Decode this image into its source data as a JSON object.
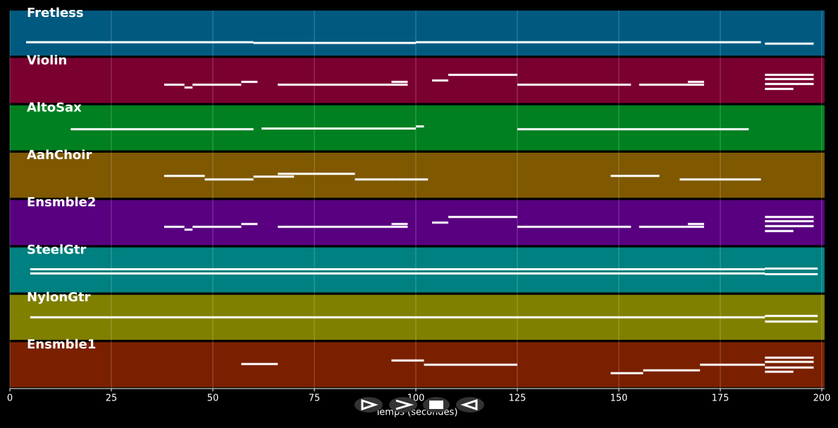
{
  "chart_data": {
    "type": "pianoroll",
    "xlabel": "Temps (secondes)",
    "xlim": [
      0,
      200
    ],
    "xticks": [
      0,
      25,
      50,
      75,
      100,
      125,
      150,
      175,
      200
    ],
    "grid": true,
    "series": [
      {
        "name": "Fretless",
        "color": "#005a80",
        "notes": [
          [
            4,
            60,
            2.75
          ],
          [
            60,
            100,
            2.5
          ],
          [
            100,
            185,
            2.75
          ],
          [
            186,
            198,
            2.25
          ]
        ]
      },
      {
        "name": "Violin",
        "color": "#7a0030",
        "notes": [
          [
            38,
            43,
            4.5
          ],
          [
            43,
            45,
            3.5
          ],
          [
            45,
            57,
            4.5
          ],
          [
            57,
            61,
            5.5
          ],
          [
            66,
            98,
            4.5
          ],
          [
            94,
            98,
            5.5
          ],
          [
            104,
            108,
            6
          ],
          [
            108,
            125,
            8
          ],
          [
            125,
            153,
            4.5
          ],
          [
            155,
            171,
            4.5
          ],
          [
            167,
            171,
            5.5
          ],
          [
            186,
            198,
            8
          ],
          [
            186,
            198,
            6.5
          ],
          [
            186,
            198,
            4.75
          ],
          [
            186,
            193,
            3
          ]
        ]
      },
      {
        "name": "AltoSax",
        "color": "#008020",
        "notes": [
          [
            15,
            60,
            5.5
          ],
          [
            62,
            100,
            5.75
          ],
          [
            100,
            102,
            6.5
          ],
          [
            125,
            182,
            5.5
          ]
        ]
      },
      {
        "name": "AahChoir",
        "color": "#7f5800",
        "notes": [
          [
            38,
            48,
            5.75
          ],
          [
            48,
            60,
            4.5
          ],
          [
            60,
            70,
            5.5
          ],
          [
            66,
            85,
            6.5
          ],
          [
            85,
            95,
            4.5
          ],
          [
            95,
            103,
            4.5
          ],
          [
            148,
            160,
            5.75
          ],
          [
            165,
            185,
            4.5
          ]
        ]
      },
      {
        "name": "Ensmble2",
        "color": "#580080",
        "notes": [
          [
            38,
            43,
            4.5
          ],
          [
            43,
            45,
            3.5
          ],
          [
            45,
            57,
            4.5
          ],
          [
            57,
            61,
            5.5
          ],
          [
            66,
            98,
            4.5
          ],
          [
            94,
            98,
            5.5
          ],
          [
            104,
            108,
            6
          ],
          [
            108,
            125,
            8
          ],
          [
            125,
            153,
            4.5
          ],
          [
            155,
            171,
            4.5
          ],
          [
            167,
            171,
            5.5
          ],
          [
            186,
            198,
            8
          ],
          [
            186,
            198,
            6.5
          ],
          [
            186,
            198,
            4.75
          ],
          [
            186,
            193,
            3
          ]
        ]
      },
      {
        "name": "SteelGtr",
        "color": "#008080",
        "notes": [
          [
            5,
            186,
            6.25
          ],
          [
            5,
            186,
            4.75
          ],
          [
            186,
            199,
            6.5
          ],
          [
            186,
            199,
            4.5
          ]
        ]
      },
      {
        "name": "NylonGtr",
        "color": "#808000",
        "notes": [
          [
            5,
            186,
            6
          ],
          [
            186,
            199,
            6.5
          ],
          [
            186,
            199,
            4.5
          ]
        ]
      },
      {
        "name": "Ensmble1",
        "color": "#7a2000",
        "notes": [
          [
            57,
            66,
            6.25
          ],
          [
            94,
            102,
            7.5
          ],
          [
            102,
            125,
            6
          ],
          [
            148,
            156,
            3
          ],
          [
            156,
            170,
            4
          ],
          [
            170,
            186,
            6
          ],
          [
            186,
            198,
            8.5
          ],
          [
            186,
            198,
            7
          ],
          [
            186,
            198,
            5
          ],
          [
            186,
            193,
            3.5
          ]
        ]
      }
    ]
  }
}
